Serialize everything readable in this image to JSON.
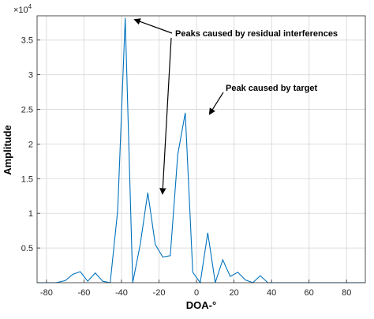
{
  "chart_data": {
    "type": "line",
    "xlabel": "DOA-°",
    "ylabel": "Amplitude",
    "xlim": [
      -85,
      90
    ],
    "ylim": [
      0,
      38500
    ],
    "x_ticks": [
      -80,
      -60,
      -40,
      -20,
      0,
      20,
      40,
      60,
      80
    ],
    "y_ticks": [
      5000,
      10000,
      15000,
      20000,
      25000,
      30000,
      35000
    ],
    "y_tick_labels": [
      "0.5",
      "1",
      "1.5",
      "2",
      "2.5",
      "3",
      "3.5"
    ],
    "y_exponent_base": "×10",
    "y_exponent_power": "4",
    "grid": true,
    "line_color": "#0072BD",
    "series": [
      {
        "x": [
          -85,
          -80,
          -75,
          -70,
          -66,
          -62,
          -58,
          -54,
          -50,
          -46,
          -42,
          -38,
          -34,
          -30,
          -26,
          -22,
          -18,
          -14,
          -10,
          -6,
          -2,
          2,
          6,
          10,
          14,
          18,
          22,
          26,
          30,
          34,
          38,
          42,
          46,
          50,
          54,
          58,
          62,
          66,
          70,
          74,
          78,
          82,
          86,
          90
        ],
        "y": [
          0,
          0,
          0,
          300,
          1200,
          1600,
          200,
          1400,
          200,
          0,
          10500,
          38200,
          0,
          5500,
          13000,
          5500,
          3700,
          3900,
          18500,
          24500,
          1500,
          0,
          7200,
          0,
          3300,
          900,
          1500,
          400,
          0,
          1000,
          0,
          0,
          0,
          0,
          0,
          0,
          0,
          0,
          0,
          0,
          0,
          0,
          0,
          0
        ]
      }
    ],
    "annotations": [
      {
        "text": "Peaks caused by residual interferences",
        "targets": [
          [
            -34,
            38200
          ],
          [
            -19,
            13000
          ]
        ]
      },
      {
        "text": "Peak caused by target",
        "targets": [
          [
            6,
            24500
          ]
        ]
      }
    ]
  }
}
